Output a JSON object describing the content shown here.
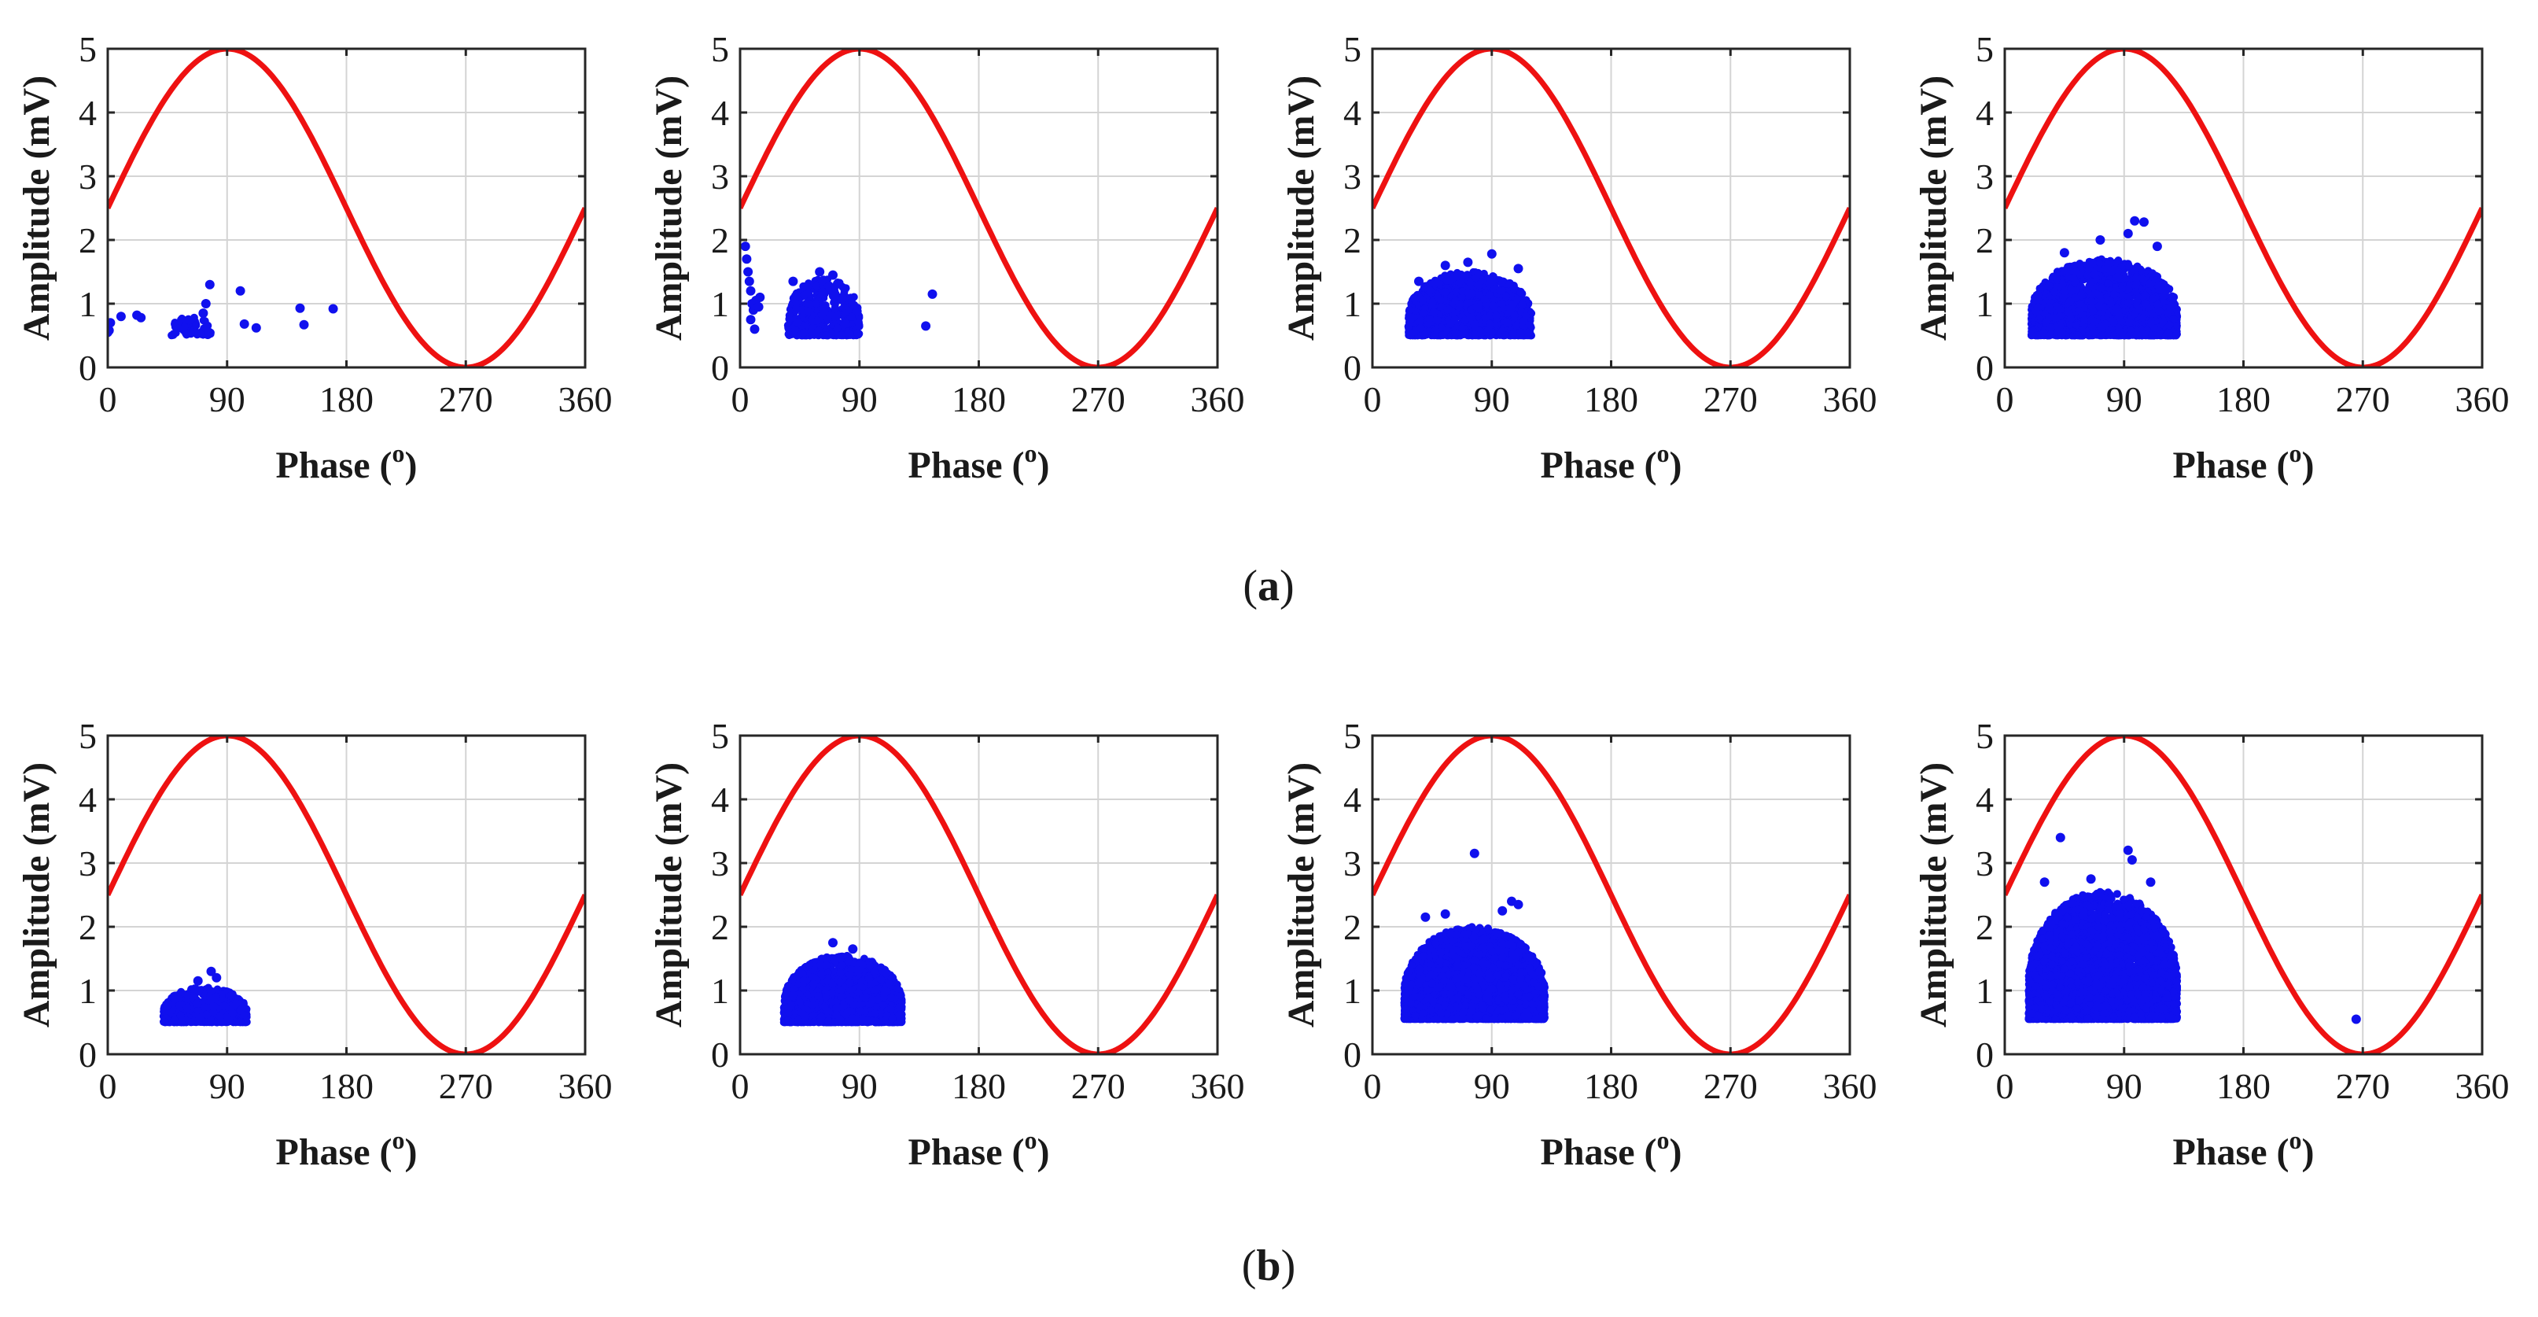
{
  "figure": {
    "captions": [
      {
        "open": "(",
        "letter": "a",
        "close": ")"
      },
      {
        "open": "(",
        "letter": "b",
        "close": ")"
      }
    ],
    "colors": {
      "sine": "#ee1111",
      "points": "#1010ee",
      "grid": "#d4d4d4",
      "axis": "#262626"
    }
  },
  "chart_data": [
    {
      "type": "scatter",
      "row": "a",
      "panel": 1,
      "xlabel": "Phase (",
      "xlabel_sup": "o",
      "xlabel_close": ")",
      "ylabel": "Amplitude (mV)",
      "xlim": [
        0,
        360
      ],
      "ylim": [
        0,
        5
      ],
      "xticks": [
        "0",
        "90",
        "180",
        "270",
        "360"
      ],
      "yticks": [
        "0",
        "1",
        "2",
        "3",
        "4",
        "5"
      ],
      "grid": true,
      "sine": {
        "mean": 2.5,
        "amplitude": 2.5,
        "peak_phase": 90
      },
      "clusters": [
        {
          "x_range": [
            48,
            78
          ],
          "y_min": 0.5,
          "y_max": 0.8,
          "n": 55
        }
      ],
      "points": [
        [
          0,
          0.55
        ],
        [
          0,
          0.62
        ],
        [
          1,
          0.58
        ],
        [
          2,
          0.7
        ],
        [
          10,
          0.8
        ],
        [
          22,
          0.82
        ],
        [
          25,
          0.78
        ],
        [
          72,
          0.85
        ],
        [
          74,
          1.0
        ],
        [
          77,
          1.3
        ],
        [
          100,
          1.2
        ],
        [
          103,
          0.68
        ],
        [
          112,
          0.62
        ],
        [
          145,
          0.93
        ],
        [
          148,
          0.67
        ],
        [
          170,
          0.92
        ]
      ]
    },
    {
      "type": "scatter",
      "row": "a",
      "panel": 2,
      "xlabel": "Phase (",
      "xlabel_sup": "o",
      "xlabel_close": ")",
      "ylabel": "Amplitude (mV)",
      "xlim": [
        0,
        360
      ],
      "ylim": [
        0,
        5
      ],
      "xticks": [
        "0",
        "90",
        "180",
        "270",
        "360"
      ],
      "yticks": [
        "0",
        "1",
        "2",
        "3",
        "4",
        "5"
      ],
      "grid": true,
      "sine": {
        "mean": 2.5,
        "amplitude": 2.5,
        "peak_phase": 90
      },
      "clusters": [
        {
          "x_range": [
            36,
            90
          ],
          "y_min": 0.5,
          "y_max": 1.4,
          "n": 420
        }
      ],
      "points": [
        [
          4,
          1.9
        ],
        [
          5,
          1.7
        ],
        [
          6,
          1.5
        ],
        [
          7,
          1.35
        ],
        [
          8,
          1.2
        ],
        [
          9,
          1.0
        ],
        [
          10,
          0.9
        ],
        [
          8,
          0.75
        ],
        [
          11,
          0.6
        ],
        [
          12,
          1.05
        ],
        [
          15,
          1.1
        ],
        [
          14,
          0.95
        ],
        [
          40,
          1.35
        ],
        [
          60,
          1.5
        ],
        [
          70,
          1.45
        ],
        [
          140,
          0.65
        ],
        [
          145,
          1.15
        ]
      ]
    },
    {
      "type": "scatter",
      "row": "a",
      "panel": 3,
      "xlabel": "Phase (",
      "xlabel_sup": "o",
      "xlabel_close": ")",
      "ylabel": "Amplitude (mV)",
      "xlim": [
        0,
        360
      ],
      "ylim": [
        0,
        5
      ],
      "xticks": [
        "0",
        "90",
        "180",
        "270",
        "360"
      ],
      "yticks": [
        "0",
        "1",
        "2",
        "3",
        "4",
        "5"
      ],
      "grid": true,
      "sine": {
        "mean": 2.5,
        "amplitude": 2.5,
        "peak_phase": 90
      },
      "clusters": [
        {
          "x_range": [
            27,
            120
          ],
          "y_min": 0.5,
          "y_max": 1.5,
          "n": 1500
        }
      ],
      "points": [
        [
          90,
          1.78
        ],
        [
          55,
          1.6
        ],
        [
          72,
          1.65
        ],
        [
          35,
          1.35
        ],
        [
          110,
          1.55
        ]
      ]
    },
    {
      "type": "scatter",
      "row": "a",
      "panel": 4,
      "xlabel": "Phase (",
      "xlabel_sup": "o",
      "xlabel_close": ")",
      "ylabel": "Amplitude (mV)",
      "xlim": [
        0,
        360
      ],
      "ylim": [
        0,
        5
      ],
      "xticks": [
        "0",
        "90",
        "180",
        "270",
        "360"
      ],
      "yticks": [
        "0",
        "1",
        "2",
        "3",
        "4",
        "5"
      ],
      "grid": true,
      "sine": {
        "mean": 2.5,
        "amplitude": 2.5,
        "peak_phase": 90
      },
      "clusters": [
        {
          "x_range": [
            20,
            130
          ],
          "y_min": 0.5,
          "y_max": 1.7,
          "n": 2000
        }
      ],
      "points": [
        [
          98,
          2.3
        ],
        [
          105,
          2.28
        ],
        [
          93,
          2.1
        ],
        [
          72,
          2.0
        ],
        [
          45,
          1.8
        ],
        [
          115,
          1.9
        ]
      ]
    },
    {
      "type": "scatter",
      "row": "b",
      "panel": 1,
      "xlabel": "Phase (",
      "xlabel_sup": "o",
      "xlabel_close": ")",
      "ylabel": "Amplitude (mV)",
      "xlim": [
        0,
        360
      ],
      "ylim": [
        0,
        5
      ],
      "xticks": [
        "0",
        "90",
        "180",
        "270",
        "360"
      ],
      "yticks": [
        "0",
        "1",
        "2",
        "3",
        "4",
        "5"
      ],
      "grid": true,
      "sine": {
        "mean": 2.5,
        "amplitude": 2.5,
        "peak_phase": 90
      },
      "clusters": [
        {
          "x_range": [
            42,
            105
          ],
          "y_min": 0.5,
          "y_max": 1.05,
          "n": 600
        }
      ],
      "points": [
        [
          78,
          1.3
        ],
        [
          82,
          1.2
        ],
        [
          68,
          1.15
        ]
      ]
    },
    {
      "type": "scatter",
      "row": "b",
      "panel": 2,
      "xlabel": "Phase (",
      "xlabel_sup": "o",
      "xlabel_close": ")",
      "ylabel": "Amplitude (mV)",
      "xlim": [
        0,
        360
      ],
      "ylim": [
        0,
        5
      ],
      "xticks": [
        "0",
        "90",
        "180",
        "270",
        "360"
      ],
      "yticks": [
        "0",
        "1",
        "2",
        "3",
        "4",
        "5"
      ],
      "grid": true,
      "sine": {
        "mean": 2.5,
        "amplitude": 2.5,
        "peak_phase": 90
      },
      "clusters": [
        {
          "x_range": [
            33,
            122
          ],
          "y_min": 0.5,
          "y_max": 1.55,
          "n": 2200
        }
      ],
      "points": [
        [
          70,
          1.75
        ],
        [
          85,
          1.65
        ]
      ]
    },
    {
      "type": "scatter",
      "row": "b",
      "panel": 3,
      "xlabel": "Phase (",
      "xlabel_sup": "o",
      "xlabel_close": ")",
      "ylabel": "Amplitude (mV)",
      "xlim": [
        0,
        360
      ],
      "ylim": [
        0,
        5
      ],
      "xticks": [
        "0",
        "90",
        "180",
        "270",
        "360"
      ],
      "yticks": [
        "0",
        "1",
        "2",
        "3",
        "4",
        "5"
      ],
      "grid": true,
      "sine": {
        "mean": 2.5,
        "amplitude": 2.5,
        "peak_phase": 90
      },
      "clusters": [
        {
          "x_range": [
            24,
            130
          ],
          "y_min": 0.55,
          "y_max": 2.0,
          "n": 3000
        }
      ],
      "points": [
        [
          77,
          3.15
        ],
        [
          105,
          2.4
        ],
        [
          110,
          2.35
        ],
        [
          40,
          2.15
        ],
        [
          55,
          2.2
        ],
        [
          98,
          2.25
        ]
      ]
    },
    {
      "type": "scatter",
      "row": "b",
      "panel": 4,
      "xlabel": "Phase (",
      "xlabel_sup": "o",
      "xlabel_close": ")",
      "ylabel": "Amplitude (mV)",
      "xlim": [
        0,
        360
      ],
      "ylim": [
        0,
        5
      ],
      "xticks": [
        "0",
        "90",
        "180",
        "270",
        "360"
      ],
      "yticks": [
        "0",
        "1",
        "2",
        "3",
        "4",
        "5"
      ],
      "grid": true,
      "sine": {
        "mean": 2.5,
        "amplitude": 2.5,
        "peak_phase": 90
      },
      "clusters": [
        {
          "x_range": [
            18,
            130
          ],
          "y_min": 0.55,
          "y_max": 2.55,
          "n": 4000
        }
      ],
      "points": [
        [
          42,
          3.4
        ],
        [
          93,
          3.2
        ],
        [
          96,
          3.05
        ],
        [
          30,
          2.7
        ],
        [
          65,
          2.75
        ],
        [
          110,
          2.7
        ],
        [
          265,
          0.55
        ]
      ]
    }
  ]
}
